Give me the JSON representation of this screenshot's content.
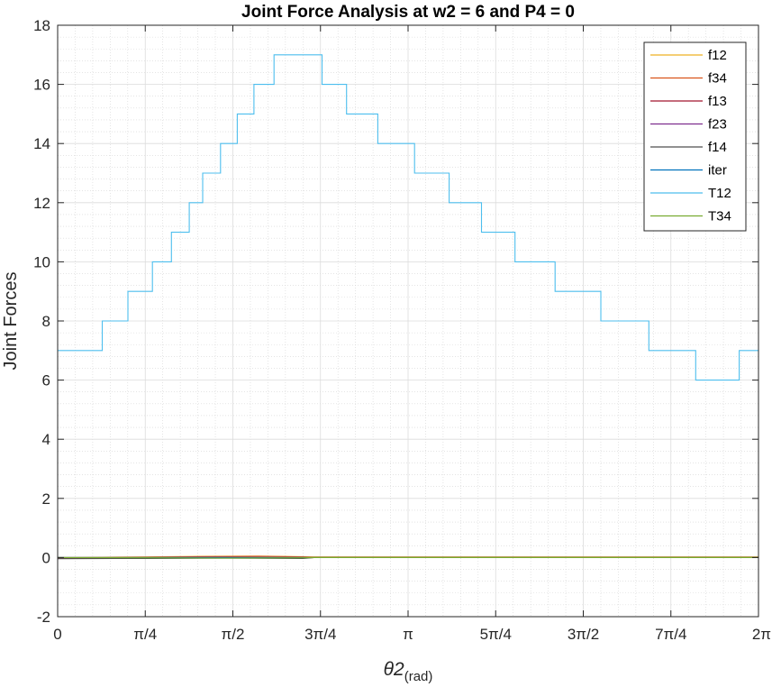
{
  "chart_data": {
    "type": "line",
    "title": "Joint Force Analysis at w2 = 6 and P4 = 0",
    "ylabel": "Joint Forces",
    "xlabel_main": "θ2",
    "xlabel_sub": "(rad)",
    "xlim": [
      0,
      6.2832
    ],
    "ylim": [
      -2,
      18
    ],
    "x_ticks": [
      0,
      0.7854,
      1.5708,
      2.3562,
      3.1416,
      3.927,
      4.7124,
      5.4978,
      6.2832
    ],
    "x_tick_labels": [
      "0",
      "π/4",
      "π/2",
      "3π/4",
      "π",
      "5π/4",
      "3π/2",
      "7π/4",
      "2π"
    ],
    "y_ticks": [
      -2,
      0,
      2,
      4,
      6,
      8,
      10,
      12,
      14,
      16,
      18
    ],
    "grid": true,
    "minor_grid": true,
    "legend_position": "top-right",
    "series": [
      {
        "name": "f12",
        "color": "#EDB120",
        "x": [
          0,
          0.8,
          1.3,
          1.8,
          2.2,
          2.3,
          3.5,
          6.2832
        ],
        "y": [
          0,
          0.02,
          0.04,
          0.05,
          0.03,
          0.02,
          0.02,
          0.02
        ]
      },
      {
        "name": "f34",
        "color": "#D95319",
        "x": [
          0,
          0.8,
          1.3,
          1.8,
          2.2,
          2.3,
          3.5,
          6.2832
        ],
        "y": [
          -0.02,
          0.01,
          0.03,
          0.04,
          0.02,
          0.0,
          0.0,
          0.0
        ]
      },
      {
        "name": "f13",
        "color": "#A2142F",
        "x": [
          0,
          0.8,
          1.5,
          2.2,
          2.3,
          6.2832
        ],
        "y": [
          -0.03,
          -0.01,
          0.01,
          -0.01,
          0.0,
          0.0
        ]
      },
      {
        "name": "f23",
        "color": "#7E2F8E",
        "x": [
          0,
          0.8,
          1.5,
          2.2,
          2.3,
          6.2832
        ],
        "y": [
          0.0,
          0.0,
          0.01,
          0.0,
          0.0,
          0.0
        ]
      },
      {
        "name": "f14",
        "color": "#4F4F4F",
        "x": [
          0,
          0.8,
          1.5,
          2.2,
          2.3,
          6.2832
        ],
        "y": [
          -0.04,
          -0.03,
          -0.02,
          -0.03,
          0.0,
          0.0
        ]
      },
      {
        "name": "iter",
        "color": "#0072BD",
        "x": [
          0,
          6.2832
        ],
        "y": [
          0,
          0
        ]
      },
      {
        "name": "T12",
        "color": "#4DBEEE",
        "step": true,
        "x": [
          0,
          0.4,
          0.63,
          0.85,
          1.02,
          1.18,
          1.3,
          1.46,
          1.61,
          1.76,
          1.94,
          2.37,
          2.59,
          2.87,
          3.2,
          3.51,
          3.8,
          4.1,
          4.46,
          4.87,
          5.3,
          5.72,
          6.11,
          6.2832
        ],
        "y": [
          7,
          8,
          9,
          10,
          11,
          12,
          13,
          14,
          15,
          16,
          17,
          16,
          15,
          14,
          13,
          12,
          11,
          10,
          9,
          8,
          7,
          6,
          7,
          7
        ]
      },
      {
        "name": "T34",
        "color": "#77AC30",
        "x": [
          0,
          0.8,
          1.5,
          2.2,
          2.3,
          6.2832
        ],
        "y": [
          0,
          -0.01,
          -0.02,
          -0.01,
          0.0,
          0.0
        ]
      }
    ]
  }
}
